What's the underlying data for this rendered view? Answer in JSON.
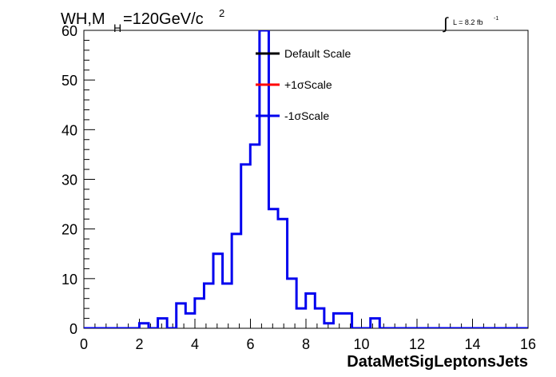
{
  "chart_data": {
    "type": "line",
    "title_main": "WH,M",
    "title_sub": "H",
    "title_rest": "=120GeV/c",
    "title_sup": "2",
    "lumi_label": "L = 8.2 fb",
    "lumi_sup": "-1",
    "xlabel": "DataMetSigLeptonsJets",
    "xlim": [
      0,
      16
    ],
    "ylim": [
      0,
      60
    ],
    "x_ticks": [
      "0",
      "2",
      "4",
      "6",
      "8",
      "10",
      "12",
      "14",
      "16"
    ],
    "y_ticks": [
      "0",
      "10",
      "20",
      "30",
      "40",
      "50",
      "60"
    ],
    "bin_width": 0.333,
    "bin_start": 0,
    "legend": [
      {
        "name": "Default Scale",
        "color": "#000000"
      },
      {
        "name": "+1σScale",
        "color": "#ff0000"
      },
      {
        "name": "-1σScale",
        "color": "#0000ee"
      }
    ],
    "series": [
      {
        "name": "-1σScale",
        "color": "#0000ee",
        "values": [
          0,
          0,
          0,
          0,
          0,
          0,
          1,
          0,
          2,
          0,
          5,
          3,
          6,
          9,
          15,
          9,
          19,
          33,
          37,
          60,
          24,
          22,
          10,
          4,
          7,
          4,
          1,
          3,
          3,
          0,
          0,
          2,
          0,
          0,
          0,
          0,
          0,
          0,
          0,
          0,
          0,
          0,
          0,
          0,
          0,
          0,
          0,
          0
        ]
      }
    ]
  }
}
